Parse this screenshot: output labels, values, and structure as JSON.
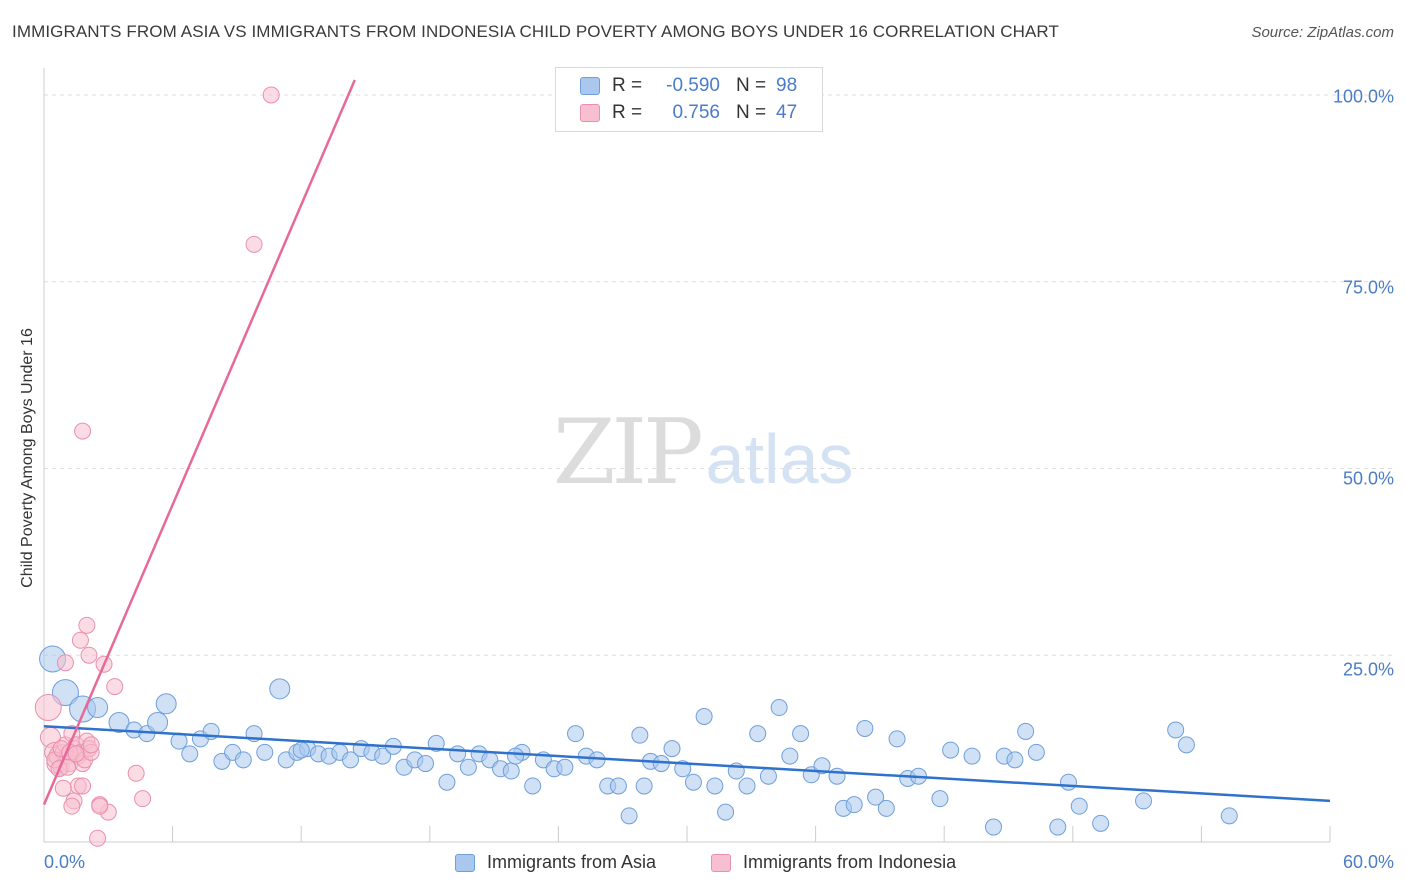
{
  "title": "IMMIGRANTS FROM ASIA VS IMMIGRANTS FROM INDONESIA CHILD POVERTY AMONG BOYS UNDER 16 CORRELATION CHART",
  "source": "Source: ZipAtlas.com",
  "watermark": {
    "zip": "ZIP",
    "atlas": "atlas"
  },
  "legend": {
    "asia": {
      "r_label": "R =",
      "r_value": "-0.590",
      "n_label": "N =",
      "n_value": "98"
    },
    "indonesia": {
      "r_label": "R =",
      "r_value": "0.756",
      "n_label": "N =",
      "n_value": "47"
    }
  },
  "bottom_legend": {
    "asia": "Immigrants from Asia",
    "indonesia": "Immigrants from Indonesia"
  },
  "colors": {
    "asia_fill": "#aac8ee",
    "asia_stroke": "#6f9fd9",
    "asia_line": "#2f72cc",
    "indo_fill": "#f7bfd0",
    "indo_stroke": "#ea8fae",
    "indo_line": "#e8689a",
    "grid": "#dddddd",
    "tick_text": "#4a7cc8"
  },
  "chart_data": {
    "type": "scatter",
    "title": "IMMIGRANTS FROM ASIA VS IMMIGRANTS FROM INDONESIA CHILD POVERTY AMONG BOYS UNDER 16 CORRELATION CHART",
    "xlabel": "",
    "ylabel": "Child Poverty Among Boys Under 16",
    "xlim": [
      0,
      60
    ],
    "ylim": [
      0,
      102
    ],
    "x_tick_labels": [
      "0.0%",
      "60.0%"
    ],
    "y_ticks": [
      {
        "value": 25,
        "label": "25.0%"
      },
      {
        "value": 50,
        "label": "50.0%"
      },
      {
        "value": 75,
        "label": "75.0%"
      },
      {
        "value": 100,
        "label": "100.0%"
      }
    ],
    "grid": true,
    "series": [
      {
        "name": "Immigrants from Asia",
        "r": -0.59,
        "n": 98,
        "trend": [
          [
            0,
            15.5
          ],
          [
            60,
            5.5
          ]
        ],
        "points": [
          [
            0.4,
            24.5,
            3
          ],
          [
            1.0,
            20.0,
            3
          ],
          [
            1.8,
            17.8,
            3
          ],
          [
            2.5,
            18.0,
            2
          ],
          [
            3.5,
            16.0,
            2
          ],
          [
            4.2,
            15.0,
            1
          ],
          [
            4.8,
            14.5,
            1
          ],
          [
            5.3,
            16.0,
            2
          ],
          [
            5.7,
            18.5,
            2
          ],
          [
            6.3,
            13.5,
            1
          ],
          [
            6.8,
            11.8,
            1
          ],
          [
            7.3,
            13.8,
            1
          ],
          [
            7.8,
            14.8,
            1
          ],
          [
            8.3,
            10.8,
            1
          ],
          [
            8.8,
            12.0,
            1
          ],
          [
            9.3,
            11.0,
            1
          ],
          [
            9.8,
            14.5,
            1
          ],
          [
            10.3,
            12.0,
            1
          ],
          [
            11.0,
            20.5,
            2
          ],
          [
            11.3,
            11.0,
            1
          ],
          [
            11.8,
            12.0,
            1
          ],
          [
            12.3,
            12.5,
            1
          ],
          [
            12.8,
            11.8,
            1
          ],
          [
            13.3,
            11.5,
            1
          ],
          [
            13.8,
            12.0,
            1
          ],
          [
            14.3,
            11.0,
            1
          ],
          [
            14.8,
            12.5,
            1
          ],
          [
            15.3,
            12.0,
            1
          ],
          [
            15.8,
            11.5,
            1
          ],
          [
            16.3,
            12.8,
            1
          ],
          [
            16.8,
            10.0,
            1
          ],
          [
            17.3,
            11.0,
            1
          ],
          [
            17.8,
            10.5,
            1
          ],
          [
            18.3,
            13.2,
            1
          ],
          [
            18.8,
            8.0,
            1
          ],
          [
            19.3,
            11.8,
            1
          ],
          [
            19.8,
            10.0,
            1
          ],
          [
            20.3,
            11.8,
            1
          ],
          [
            20.8,
            11.0,
            1
          ],
          [
            21.3,
            9.8,
            1
          ],
          [
            21.8,
            9.5,
            1
          ],
          [
            22.3,
            12.0,
            1
          ],
          [
            22.8,
            7.5,
            1
          ],
          [
            23.3,
            11.0,
            1
          ],
          [
            23.8,
            9.8,
            1
          ],
          [
            24.3,
            10.0,
            1
          ],
          [
            24.8,
            14.5,
            1
          ],
          [
            25.3,
            11.5,
            1
          ],
          [
            25.8,
            11.0,
            1
          ],
          [
            26.3,
            7.5,
            1
          ],
          [
            26.8,
            7.5,
            1
          ],
          [
            27.3,
            3.5,
            1
          ],
          [
            27.8,
            14.3,
            1
          ],
          [
            28.3,
            10.8,
            1
          ],
          [
            28.8,
            10.5,
            1
          ],
          [
            29.3,
            12.5,
            1
          ],
          [
            29.8,
            9.8,
            1
          ],
          [
            30.3,
            8.0,
            1
          ],
          [
            30.8,
            16.8,
            1
          ],
          [
            31.3,
            7.5,
            1
          ],
          [
            31.8,
            4.0,
            1
          ],
          [
            32.3,
            9.5,
            1
          ],
          [
            32.8,
            7.5,
            1
          ],
          [
            33.3,
            14.5,
            1
          ],
          [
            33.8,
            8.8,
            1
          ],
          [
            34.3,
            18.0,
            1
          ],
          [
            34.8,
            11.5,
            1
          ],
          [
            35.3,
            14.5,
            1
          ],
          [
            35.8,
            9.0,
            1
          ],
          [
            36.3,
            10.2,
            1
          ],
          [
            37.3,
            4.5,
            1
          ],
          [
            37.8,
            5.0,
            1
          ],
          [
            38.3,
            15.2,
            1
          ],
          [
            38.8,
            6.0,
            1
          ],
          [
            39.3,
            4.5,
            1
          ],
          [
            39.8,
            13.8,
            1
          ],
          [
            40.3,
            8.5,
            1
          ],
          [
            40.8,
            8.8,
            1
          ],
          [
            41.8,
            5.8,
            1
          ],
          [
            42.3,
            12.3,
            1
          ],
          [
            43.3,
            11.5,
            1
          ],
          [
            44.3,
            2.0,
            1
          ],
          [
            44.8,
            11.5,
            1
          ],
          [
            45.3,
            11.0,
            1
          ],
          [
            45.8,
            14.8,
            1
          ],
          [
            46.3,
            12.0,
            1
          ],
          [
            47.3,
            2.0,
            1
          ],
          [
            47.8,
            8.0,
            1
          ],
          [
            48.3,
            4.8,
            1
          ],
          [
            49.3,
            2.5,
            1
          ],
          [
            51.3,
            5.5,
            1
          ],
          [
            52.8,
            15.0,
            1
          ],
          [
            53.3,
            13.0,
            1
          ],
          [
            55.3,
            3.5,
            1
          ],
          [
            12.0,
            12.3,
            1
          ],
          [
            22.0,
            11.5,
            1
          ],
          [
            28.0,
            7.5,
            1
          ],
          [
            37.0,
            8.8,
            1
          ]
        ]
      },
      {
        "name": "Immigrants from Indonesia",
        "r": 0.756,
        "n": 47,
        "trend": [
          [
            0,
            5.0
          ],
          [
            14.5,
            102.0
          ]
        ],
        "points": [
          [
            0.2,
            18.0,
            3
          ],
          [
            0.3,
            14.0,
            2
          ],
          [
            0.5,
            12.0,
            2
          ],
          [
            0.6,
            10.5,
            2
          ],
          [
            0.7,
            11.5,
            2
          ],
          [
            0.8,
            10.0,
            1
          ],
          [
            0.9,
            12.0,
            1
          ],
          [
            1.0,
            13.0,
            1
          ],
          [
            1.1,
            11.5,
            1
          ],
          [
            1.2,
            10.5,
            1
          ],
          [
            1.3,
            14.5,
            1
          ],
          [
            1.4,
            12.5,
            1
          ],
          [
            1.5,
            13.0,
            1
          ],
          [
            1.6,
            11.5,
            1
          ],
          [
            1.7,
            12.0,
            1
          ],
          [
            1.8,
            10.5,
            1
          ],
          [
            1.9,
            11.0,
            1
          ],
          [
            2.0,
            13.5,
            1
          ],
          [
            2.1,
            12.5,
            1
          ],
          [
            2.2,
            12.0,
            1
          ],
          [
            0.5,
            11.0,
            1
          ],
          [
            0.8,
            12.5,
            1
          ],
          [
            1.2,
            12.0,
            1
          ],
          [
            1.0,
            24.0,
            1
          ],
          [
            1.7,
            27.0,
            1
          ],
          [
            2.0,
            29.0,
            1
          ],
          [
            2.1,
            25.0,
            1
          ],
          [
            2.8,
            23.8,
            1
          ],
          [
            3.3,
            20.8,
            1
          ],
          [
            4.3,
            9.2,
            1
          ],
          [
            4.6,
            5.8,
            1
          ],
          [
            3.0,
            4.0,
            1
          ],
          [
            2.5,
            0.5,
            1
          ],
          [
            1.8,
            55.0,
            1
          ],
          [
            9.8,
            80.0,
            1
          ],
          [
            10.6,
            100.0,
            1
          ],
          [
            1.4,
            5.5,
            1
          ],
          [
            1.6,
            7.5,
            1
          ],
          [
            0.9,
            7.2,
            1
          ],
          [
            2.6,
            5.0,
            1
          ],
          [
            2.6,
            4.8,
            1
          ],
          [
            1.3,
            4.8,
            1
          ],
          [
            2.2,
            13.0,
            1
          ],
          [
            1.8,
            7.5,
            1
          ],
          [
            0.7,
            9.8,
            1
          ],
          [
            1.5,
            11.8,
            1
          ],
          [
            1.1,
            10.0,
            1
          ]
        ]
      }
    ]
  }
}
